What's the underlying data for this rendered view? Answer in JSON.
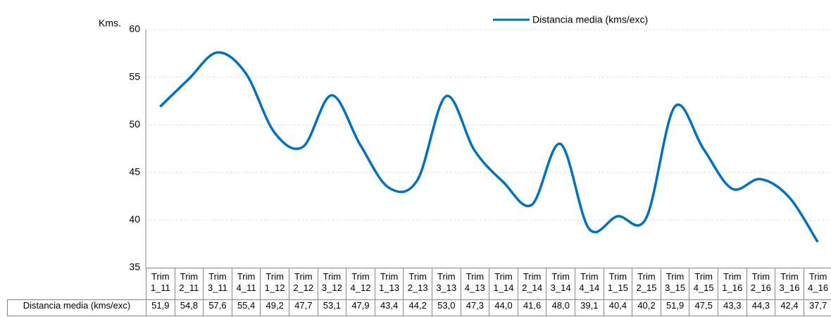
{
  "chart_data": {
    "type": "line",
    "ylabel": "Kms.",
    "categories": [
      "Trim 1_11",
      "Trim 2_11",
      "Trim 3_11",
      "Trim 4_11",
      "Trim 1_12",
      "Trim 2_12",
      "Trim 3_12",
      "Trim 4_12",
      "Trim 1_13",
      "Trim 2_13",
      "Trim 3_13",
      "Trim 4_13",
      "Trim 1_14",
      "Trim 2_14",
      "Trim 3_14",
      "Trim 4_14",
      "Trim 1_15",
      "Trim 2_15",
      "Trim 3_15",
      "Trim 4_15",
      "Trim 1_16",
      "Trim 2_16",
      "Trim 3_16",
      "Trim 4_16"
    ],
    "series": [
      {
        "name": "Distancia media (kms/exc)",
        "color": "#0070c0",
        "values": [
          51.9,
          54.8,
          57.6,
          55.4,
          49.2,
          47.7,
          53.1,
          47.9,
          43.4,
          44.2,
          53.0,
          47.3,
          44.0,
          41.6,
          48.0,
          39.1,
          40.4,
          40.2,
          51.9,
          47.5,
          43.3,
          44.3,
          42.4,
          37.7
        ],
        "value_labels": [
          "51,9",
          "54,8",
          "57,6",
          "55,4",
          "49,2",
          "47,7",
          "53,1",
          "47,9",
          "43,4",
          "44,2",
          "53,0",
          "47,3",
          "44,0",
          "41,6",
          "48,0",
          "39,1",
          "40,4",
          "40,2",
          "51,9",
          "47,5",
          "43,3",
          "44,3",
          "42,4",
          "37,7"
        ]
      }
    ],
    "ylim": [
      35,
      60
    ],
    "yticks": [
      35,
      40,
      45,
      50,
      55,
      60
    ],
    "grid": true
  }
}
